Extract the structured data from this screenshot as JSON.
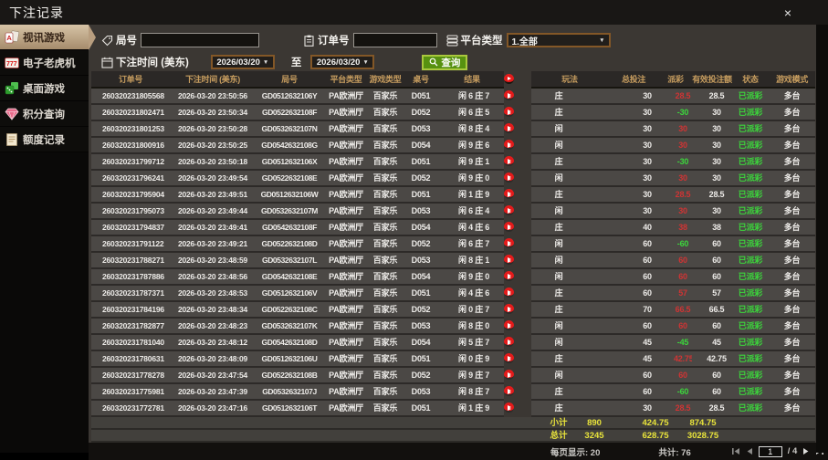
{
  "window": {
    "title": "下注记录",
    "close_label": "×"
  },
  "colors": {
    "accent_tan": "#c2ab8c",
    "header_gold": "#c79d5f",
    "positive_red": "#cf3434",
    "negative_green": "#3cd63c",
    "status_green": "#3cd63c",
    "summary_yellow": "#e9e43b",
    "search_green": "#579110"
  },
  "sidebar": {
    "items": [
      {
        "label": "视讯游戏",
        "active": true
      },
      {
        "label": "电子老虎机",
        "active": false
      },
      {
        "label": "桌面游戏",
        "active": false
      },
      {
        "label": "积分查询",
        "active": false
      },
      {
        "label": "额度记录",
        "active": false
      }
    ]
  },
  "filters": {
    "round_no_label": "局号",
    "round_no_value": "",
    "order_no_label": "订单号",
    "order_no_value": "",
    "platform_type_label": "平台类型",
    "platform_type_value": "1.全部",
    "bet_time_label": "下注时间 (美东)",
    "date_from": "2026/03/20",
    "to_label": "至",
    "date_to": "2026/03/20",
    "search_label": "查询"
  },
  "table": {
    "headers": [
      "订单号",
      "下注时间 (美东)",
      "局号",
      "平台类型",
      "游戏类型",
      "桌号",
      "结果",
      "",
      "玩法",
      "总投注",
      "派彩",
      "有效投注额",
      "状态",
      "游戏模式"
    ],
    "rows": [
      {
        "order": "260320231805568",
        "time": "2026-03-20 23:50:56",
        "round": "GD0512632106Y",
        "platform": "PA欧洲厅",
        "game": "百家乐",
        "tableno": "D051",
        "result": "闲 6 庄 7",
        "method": "庄",
        "total": "30",
        "payout": "28.5",
        "valid": "28.5",
        "status": "已派彩",
        "mode": "多台"
      },
      {
        "order": "260320231802471",
        "time": "2026-03-20 23:50:34",
        "round": "GD0522632108F",
        "platform": "PA欧洲厅",
        "game": "百家乐",
        "tableno": "D052",
        "result": "闲 6 庄 5",
        "method": "庄",
        "total": "30",
        "payout": "-30",
        "valid": "30",
        "status": "已派彩",
        "mode": "多台"
      },
      {
        "order": "260320231801253",
        "time": "2026-03-20 23:50:28",
        "round": "GD0532632107N",
        "platform": "PA欧洲厅",
        "game": "百家乐",
        "tableno": "D053",
        "result": "闲 8 庄 4",
        "method": "闲",
        "total": "30",
        "payout": "30",
        "valid": "30",
        "status": "已派彩",
        "mode": "多台"
      },
      {
        "order": "260320231800916",
        "time": "2026-03-20 23:50:25",
        "round": "GD0542632108G",
        "platform": "PA欧洲厅",
        "game": "百家乐",
        "tableno": "D054",
        "result": "闲 9 庄 6",
        "method": "闲",
        "total": "30",
        "payout": "30",
        "valid": "30",
        "status": "已派彩",
        "mode": "多台"
      },
      {
        "order": "260320231799712",
        "time": "2026-03-20 23:50:18",
        "round": "GD0512632106X",
        "platform": "PA欧洲厅",
        "game": "百家乐",
        "tableno": "D051",
        "result": "闲 9 庄 1",
        "method": "庄",
        "total": "30",
        "payout": "-30",
        "valid": "30",
        "status": "已派彩",
        "mode": "多台"
      },
      {
        "order": "260320231796241",
        "time": "2026-03-20 23:49:54",
        "round": "GD0522632108E",
        "platform": "PA欧洲厅",
        "game": "百家乐",
        "tableno": "D052",
        "result": "闲 9 庄 0",
        "method": "闲",
        "total": "30",
        "payout": "30",
        "valid": "30",
        "status": "已派彩",
        "mode": "多台"
      },
      {
        "order": "260320231795904",
        "time": "2026-03-20 23:49:51",
        "round": "GD0512632106W",
        "platform": "PA欧洲厅",
        "game": "百家乐",
        "tableno": "D051",
        "result": "闲 1 庄 9",
        "method": "庄",
        "total": "30",
        "payout": "28.5",
        "valid": "28.5",
        "status": "已派彩",
        "mode": "多台"
      },
      {
        "order": "260320231795073",
        "time": "2026-03-20 23:49:44",
        "round": "GD0532632107M",
        "platform": "PA欧洲厅",
        "game": "百家乐",
        "tableno": "D053",
        "result": "闲 6 庄 4",
        "method": "闲",
        "total": "30",
        "payout": "30",
        "valid": "30",
        "status": "已派彩",
        "mode": "多台"
      },
      {
        "order": "260320231794837",
        "time": "2026-03-20 23:49:41",
        "round": "GD0542632108F",
        "platform": "PA欧洲厅",
        "game": "百家乐",
        "tableno": "D054",
        "result": "闲 4 庄 6",
        "method": "庄",
        "total": "40",
        "payout": "38",
        "valid": "38",
        "status": "已派彩",
        "mode": "多台"
      },
      {
        "order": "260320231791122",
        "time": "2026-03-20 23:49:21",
        "round": "GD0522632108D",
        "platform": "PA欧洲厅",
        "game": "百家乐",
        "tableno": "D052",
        "result": "闲 6 庄 7",
        "method": "闲",
        "total": "60",
        "payout": "-60",
        "valid": "60",
        "status": "已派彩",
        "mode": "多台"
      },
      {
        "order": "260320231788271",
        "time": "2026-03-20 23:48:59",
        "round": "GD0532632107L",
        "platform": "PA欧洲厅",
        "game": "百家乐",
        "tableno": "D053",
        "result": "闲 8 庄 1",
        "method": "闲",
        "total": "60",
        "payout": "60",
        "valid": "60",
        "status": "已派彩",
        "mode": "多台"
      },
      {
        "order": "260320231787886",
        "time": "2026-03-20 23:48:56",
        "round": "GD0542632108E",
        "platform": "PA欧洲厅",
        "game": "百家乐",
        "tableno": "D054",
        "result": "闲 9 庄 0",
        "method": "闲",
        "total": "60",
        "payout": "60",
        "valid": "60",
        "status": "已派彩",
        "mode": "多台"
      },
      {
        "order": "260320231787371",
        "time": "2026-03-20 23:48:53",
        "round": "GD0512632106V",
        "platform": "PA欧洲厅",
        "game": "百家乐",
        "tableno": "D051",
        "result": "闲 4 庄 6",
        "method": "庄",
        "total": "60",
        "payout": "57",
        "valid": "57",
        "status": "已派彩",
        "mode": "多台"
      },
      {
        "order": "260320231784196",
        "time": "2026-03-20 23:48:34",
        "round": "GD0522632108C",
        "platform": "PA欧洲厅",
        "game": "百家乐",
        "tableno": "D052",
        "result": "闲 0 庄 7",
        "method": "庄",
        "total": "70",
        "payout": "66.5",
        "valid": "66.5",
        "status": "已派彩",
        "mode": "多台"
      },
      {
        "order": "260320231782877",
        "time": "2026-03-20 23:48:23",
        "round": "GD0532632107K",
        "platform": "PA欧洲厅",
        "game": "百家乐",
        "tableno": "D053",
        "result": "闲 8 庄 0",
        "method": "闲",
        "total": "60",
        "payout": "60",
        "valid": "60",
        "status": "已派彩",
        "mode": "多台"
      },
      {
        "order": "260320231781040",
        "time": "2026-03-20 23:48:12",
        "round": "GD0542632108D",
        "platform": "PA欧洲厅",
        "game": "百家乐",
        "tableno": "D054",
        "result": "闲 5 庄 7",
        "method": "闲",
        "total": "45",
        "payout": "-45",
        "valid": "45",
        "status": "已派彩",
        "mode": "多台"
      },
      {
        "order": "260320231780631",
        "time": "2026-03-20 23:48:09",
        "round": "GD0512632106U",
        "platform": "PA欧洲厅",
        "game": "百家乐",
        "tableno": "D051",
        "result": "闲 0 庄 9",
        "method": "庄",
        "total": "45",
        "payout": "42.75",
        "valid": "42.75",
        "status": "已派彩",
        "mode": "多台"
      },
      {
        "order": "260320231778278",
        "time": "2026-03-20 23:47:54",
        "round": "GD0522632108B",
        "platform": "PA欧洲厅",
        "game": "百家乐",
        "tableno": "D052",
        "result": "闲 9 庄 7",
        "method": "闲",
        "total": "60",
        "payout": "60",
        "valid": "60",
        "status": "已派彩",
        "mode": "多台"
      },
      {
        "order": "260320231775981",
        "time": "2026-03-20 23:47:39",
        "round": "GD0532632107J",
        "platform": "PA欧洲厅",
        "game": "百家乐",
        "tableno": "D053",
        "result": "闲 8 庄 7",
        "method": "庄",
        "total": "60",
        "payout": "-60",
        "valid": "60",
        "status": "已派彩",
        "mode": "多台"
      },
      {
        "order": "260320231772781",
        "time": "2026-03-20 23:47:16",
        "round": "GD0512632106T",
        "platform": "PA欧洲厅",
        "game": "百家乐",
        "tableno": "D051",
        "result": "闲 1 庄 9",
        "method": "庄",
        "total": "30",
        "payout": "28.5",
        "valid": "28.5",
        "status": "已派彩",
        "mode": "多台"
      }
    ],
    "subtotal": {
      "label": "小计",
      "total": "890",
      "payout": "424.75",
      "valid": "874.75"
    },
    "grand_total": {
      "label": "总计",
      "total": "3245",
      "payout": "628.75",
      "valid": "3028.75"
    }
  },
  "pagination": {
    "per_page": "每页显示: 20",
    "total_count": "共计: 76",
    "page": "1",
    "of_label": "/ 4"
  }
}
